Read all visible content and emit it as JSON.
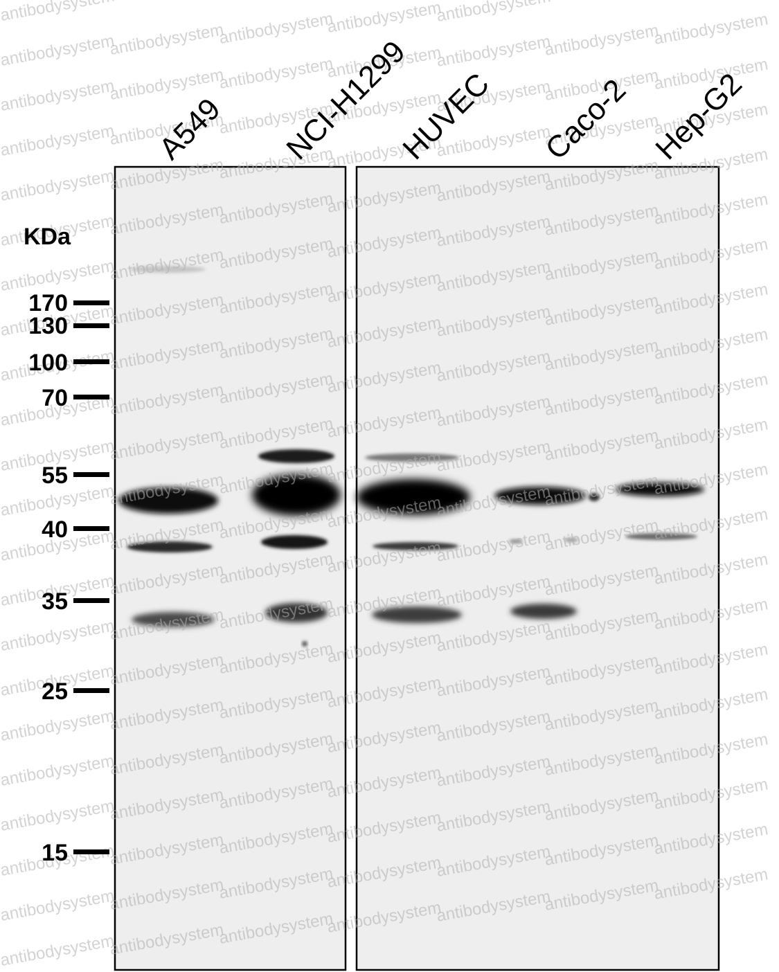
{
  "unit_label": "KDa",
  "lanes": [
    "A549",
    "NCI-H1299",
    "HUVEC",
    "Caco-2",
    "Hep-G2"
  ],
  "markers": [
    "170",
    "130",
    "100",
    "70",
    "55",
    "40",
    "35",
    "25",
    "15"
  ],
  "watermark": "antibodysystem",
  "colors": {
    "membrane": "#eeeeee",
    "band": "#0a0a0a",
    "frame": "#000000",
    "watermark": "#b0b0b0"
  }
}
